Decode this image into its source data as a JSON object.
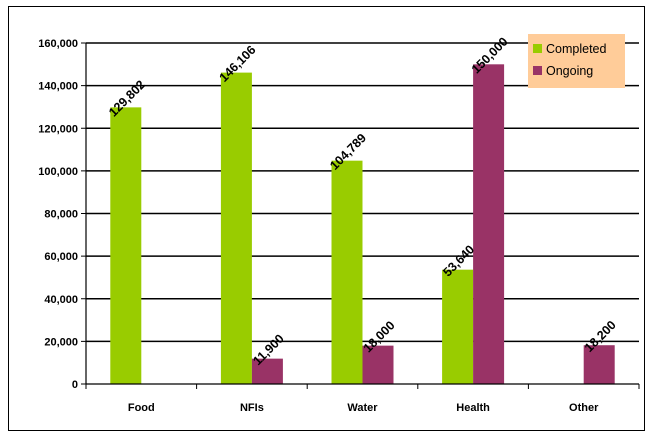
{
  "chart_data": {
    "type": "bar",
    "title": "",
    "xlabel": "",
    "ylabel": "",
    "categories": [
      "Food",
      "NFIs",
      "Water",
      "Health",
      "Other"
    ],
    "series": [
      {
        "name": "Completed",
        "color": "#99CC00",
        "values": [
          129802,
          146106,
          104789,
          53640,
          null
        ],
        "labels": [
          "129,802",
          "146,106",
          "104,789",
          "53,640",
          ""
        ]
      },
      {
        "name": "Ongoing",
        "color": "#993366",
        "values": [
          null,
          11900,
          18000,
          150000,
          18200
        ],
        "labels": [
          "",
          "11,900",
          "18,000",
          "150,000",
          "18,200"
        ]
      }
    ],
    "ylim": [
      0,
      160000
    ],
    "yticks": [
      0,
      20000,
      40000,
      60000,
      80000,
      100000,
      120000,
      140000,
      160000
    ],
    "ytick_labels": [
      "0",
      "20,000",
      "40,000",
      "60,000",
      "80,000",
      "100,000",
      "120,000",
      "140,000",
      "160,000"
    ],
    "grid": true,
    "legend": {
      "position": "top-right",
      "background": "#FFCC99"
    }
  }
}
